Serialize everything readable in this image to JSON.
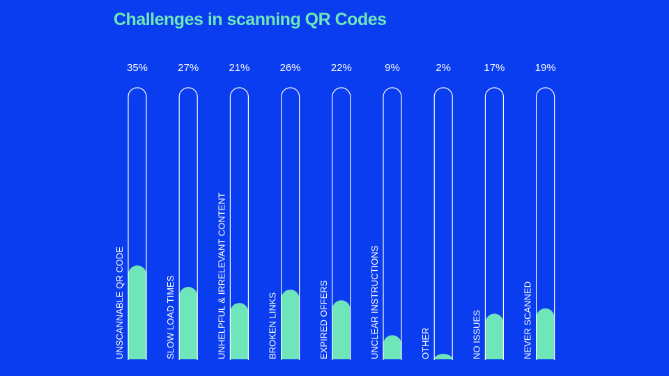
{
  "colors": {
    "background": "#0a3cf0",
    "title": "#6ee6b9",
    "fill": "#6ee6b9",
    "outline": "#ffffff",
    "text": "#ffffff"
  },
  "chart_data": {
    "type": "bar",
    "title": "Challenges in scanning QR Codes",
    "categories": [
      "UNSCANNABLE QR CODE",
      "SLOW LOAD TIMES",
      "UNHELPFUL & IRRELEVANT CONTENT",
      "BROKEN LINKS",
      "EXPIRED OFFERS",
      "UNCLEAR INSTRUCTIONS",
      "OTHER",
      "NO ISSUES",
      "NEVER SCANNED"
    ],
    "values": [
      35,
      27,
      21,
      26,
      22,
      9,
      2,
      17,
      19
    ],
    "value_labels": [
      "35%",
      "27%",
      "21%",
      "26%",
      "22%",
      "9%",
      "2%",
      "17%",
      "19%"
    ],
    "ylim": [
      0,
      100
    ],
    "unit": "%",
    "grid": false,
    "legend": "none"
  }
}
